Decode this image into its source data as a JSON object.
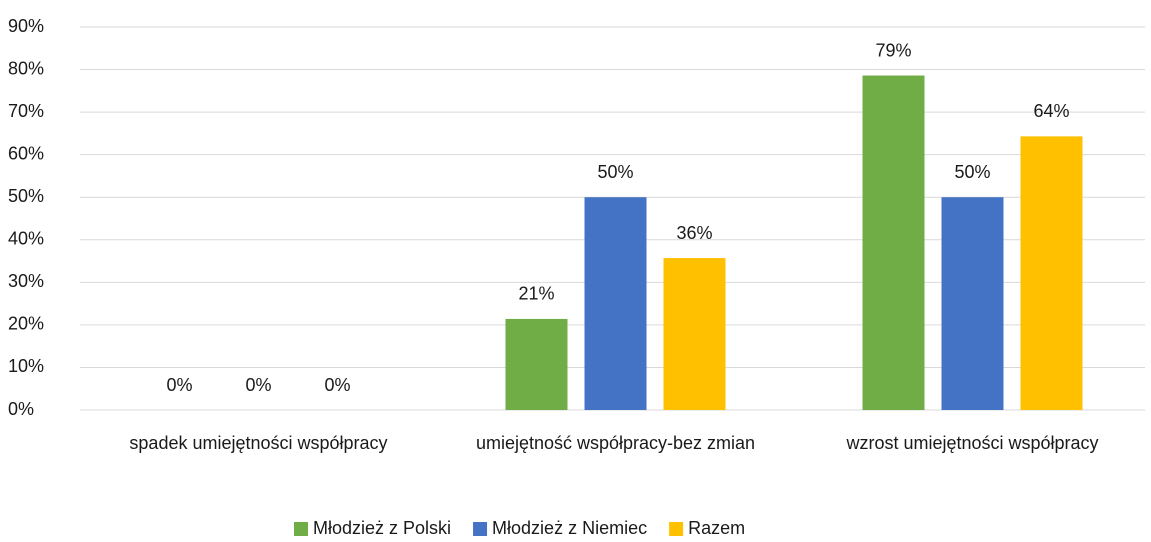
{
  "chart_data": {
    "type": "bar",
    "categories": [
      "spadek umiejętności współpracy",
      "umiejętność współpracy-bez zmian",
      "wzrost umiejętności współpracy"
    ],
    "series": [
      {
        "name": "Młodzież z Polski",
        "color": "#70ad47",
        "values": [
          0,
          21.4,
          78.6
        ],
        "value_labels": [
          "0%",
          "21%",
          "79%"
        ]
      },
      {
        "name": "Młodzież z Niemiec",
        "color": "#4472c4",
        "values": [
          0,
          50,
          50
        ],
        "value_labels": [
          "0%",
          "50%",
          "50%"
        ]
      },
      {
        "name": "Razem",
        "color": "#ffc000",
        "values": [
          0,
          35.7,
          64.3
        ],
        "value_labels": [
          "0%",
          "36%",
          "64%"
        ]
      }
    ],
    "ylim": [
      0,
      90
    ],
    "yticks": [
      {
        "value": 0,
        "label": "0%"
      },
      {
        "value": 10,
        "label": "10%"
      },
      {
        "value": 20,
        "label": "20%"
      },
      {
        "value": 30,
        "label": "30%"
      },
      {
        "value": 40,
        "label": "40%"
      },
      {
        "value": 50,
        "label": "50%"
      },
      {
        "value": 60,
        "label": "60%"
      },
      {
        "value": 70,
        "label": "70%"
      },
      {
        "value": 80,
        "label": "80%"
      },
      {
        "value": 90,
        "label": "90%"
      }
    ],
    "grid": true,
    "legend": "bottom"
  }
}
